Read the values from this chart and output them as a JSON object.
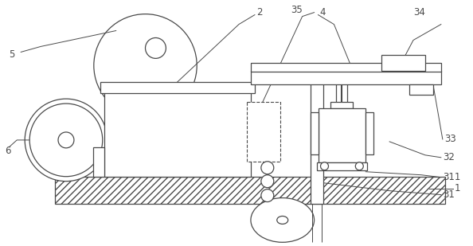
{
  "bg_color": "#ffffff",
  "line_color": "#4a4a4a",
  "fig_width": 5.94,
  "fig_height": 3.09,
  "dpi": 100,
  "label_fs": 8.5,
  "lw": 0.9
}
